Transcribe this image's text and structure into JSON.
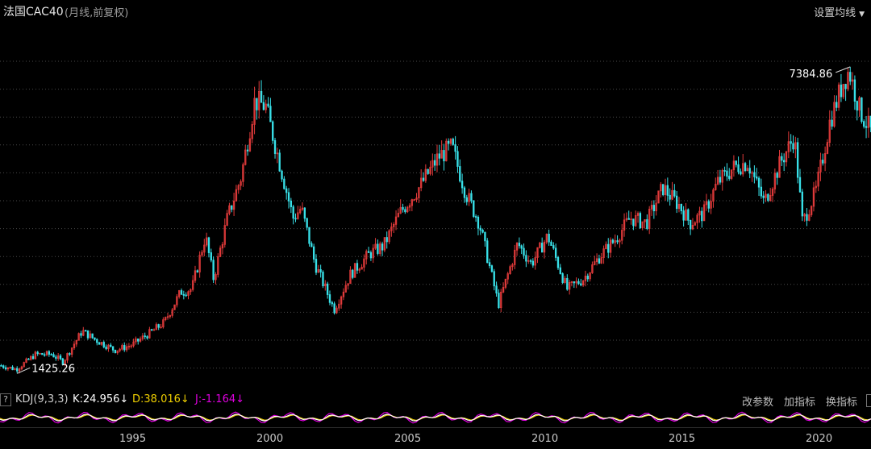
{
  "header": {
    "title": "法国CAC40",
    "subtitle": "(月线,前复权)",
    "ma_button": "设置均线"
  },
  "indicator": {
    "help": "?",
    "name": "KDJ(9,3,3)",
    "k": "K:24.956",
    "d": "D:38.016",
    "j": "J:-1.164",
    "down_arrow": "↓",
    "buttons": [
      "改参数",
      "加指标",
      "换指标"
    ]
  },
  "colors": {
    "up": "#e03a3a",
    "down": "#38e0e8",
    "k_line": "#ffffff",
    "d_line": "#f0d000",
    "j_line": "#e000e0",
    "grid": "#4a4a4a"
  },
  "chart_data": {
    "type": "candlestick",
    "title": "法国CAC40",
    "period": "monthly",
    "x_ticks": [
      "1995",
      "2000",
      "2005",
      "2010",
      "2015",
      "2020"
    ],
    "annotations": [
      {
        "label": "7384.86",
        "type": "max"
      },
      {
        "label": "1425.26",
        "type": "min"
      }
    ],
    "x_range": [
      1991.0,
      2022.8
    ],
    "y_range": [
      1300,
      7800
    ],
    "anchors": [
      {
        "t": 1991.0,
        "v": 1500
      },
      {
        "t": 1991.6,
        "v": 1425
      },
      {
        "t": 1992.3,
        "v": 1720
      },
      {
        "t": 1992.9,
        "v": 1720
      },
      {
        "t": 1993.3,
        "v": 1570
      },
      {
        "t": 1994.0,
        "v": 2180
      },
      {
        "t": 1994.5,
        "v": 2000
      },
      {
        "t": 1995.2,
        "v": 1800
      },
      {
        "t": 1995.8,
        "v": 1900
      },
      {
        "t": 1996.5,
        "v": 2150
      },
      {
        "t": 1997.0,
        "v": 2350
      },
      {
        "t": 1997.6,
        "v": 2950
      },
      {
        "t": 1998.0,
        "v": 3000
      },
      {
        "t": 1998.5,
        "v": 4050
      },
      {
        "t": 1998.8,
        "v": 3200
      },
      {
        "t": 1999.3,
        "v": 4400
      },
      {
        "t": 1999.8,
        "v": 5200
      },
      {
        "t": 2000.3,
        "v": 6700
      },
      {
        "t": 2000.7,
        "v": 6600
      },
      {
        "t": 2001.2,
        "v": 5500
      },
      {
        "t": 2001.7,
        "v": 4400
      },
      {
        "t": 2002.0,
        "v": 4600
      },
      {
        "t": 2002.5,
        "v": 3500
      },
      {
        "t": 2003.2,
        "v": 2600
      },
      {
        "t": 2003.8,
        "v": 3300
      },
      {
        "t": 2004.5,
        "v": 3700
      },
      {
        "t": 2005.0,
        "v": 3850
      },
      {
        "t": 2005.6,
        "v": 4500
      },
      {
        "t": 2006.3,
        "v": 5000
      },
      {
        "t": 2007.0,
        "v": 5600
      },
      {
        "t": 2007.5,
        "v": 5800
      },
      {
        "t": 2008.0,
        "v": 4900
      },
      {
        "t": 2008.5,
        "v": 4300
      },
      {
        "t": 2009.2,
        "v": 2700
      },
      {
        "t": 2009.9,
        "v": 3900
      },
      {
        "t": 2010.4,
        "v": 3500
      },
      {
        "t": 2011.0,
        "v": 4050
      },
      {
        "t": 2011.7,
        "v": 3000
      },
      {
        "t": 2012.3,
        "v": 3200
      },
      {
        "t": 2012.9,
        "v": 3650
      },
      {
        "t": 2013.5,
        "v": 4000
      },
      {
        "t": 2014.0,
        "v": 4400
      },
      {
        "t": 2014.6,
        "v": 4300
      },
      {
        "t": 2015.2,
        "v": 5000
      },
      {
        "t": 2015.8,
        "v": 4650
      },
      {
        "t": 2016.2,
        "v": 4300
      },
      {
        "t": 2016.7,
        "v": 4500
      },
      {
        "t": 2017.2,
        "v": 5100
      },
      {
        "t": 2017.8,
        "v": 5400
      },
      {
        "t": 2018.3,
        "v": 5500
      },
      {
        "t": 2018.9,
        "v": 4700
      },
      {
        "t": 2019.5,
        "v": 5500
      },
      {
        "t": 2020.0,
        "v": 6000
      },
      {
        "t": 2020.3,
        "v": 4300
      },
      {
        "t": 2020.8,
        "v": 4950
      },
      {
        "t": 2021.3,
        "v": 6300
      },
      {
        "t": 2021.8,
        "v": 7100
      },
      {
        "t": 2022.0,
        "v": 7300
      },
      {
        "t": 2022.4,
        "v": 6500
      },
      {
        "t": 2022.8,
        "v": 6100
      }
    ]
  }
}
